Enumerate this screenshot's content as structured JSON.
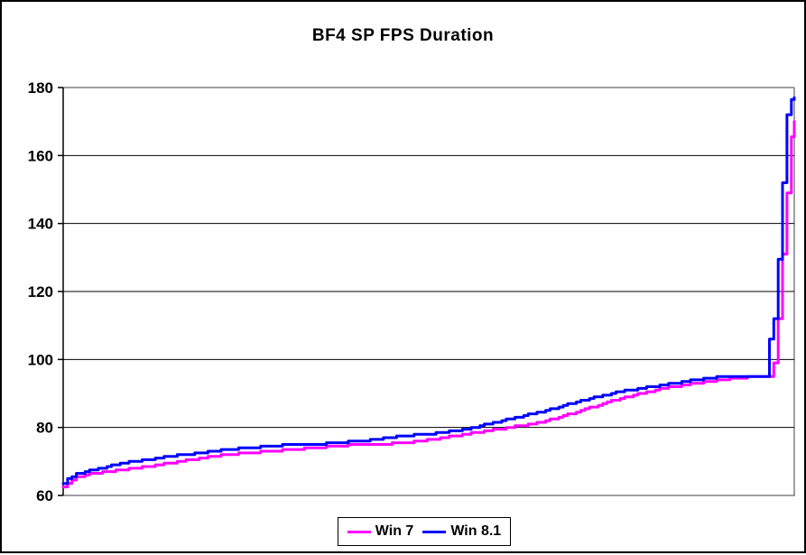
{
  "window": {
    "background": "#ffffff",
    "frame_border_color": "#000000",
    "plot_border_color": "#808080",
    "gridline_color": "#000000",
    "axis_color": "#000000"
  },
  "chart_data": {
    "type": "line",
    "title": "BF4 SP FPS Duration",
    "xlabel": "",
    "ylabel": "",
    "ylim": [
      60,
      180
    ],
    "yticks": [
      60,
      80,
      100,
      120,
      140,
      160,
      180
    ],
    "x_axis_tick_labels": "none",
    "x_range_percent": [
      0,
      100
    ],
    "grid": "horizontal gridlines at 80,100,120,140,160; gray top/right/bottom plot border",
    "legend_position": "bottom-center",
    "line_width": 3,
    "series": [
      {
        "name": "Win 7",
        "color": "#FF00FF",
        "points_percent_fps": [
          [
            0,
            62.5
          ],
          [
            0.5,
            63.5
          ],
          [
            1,
            64.5
          ],
          [
            2,
            65.5
          ],
          [
            3,
            66
          ],
          [
            4,
            66.5
          ],
          [
            6,
            67
          ],
          [
            8,
            67.5
          ],
          [
            10,
            68
          ],
          [
            13,
            69
          ],
          [
            16,
            70
          ],
          [
            19,
            71
          ],
          [
            22,
            72
          ],
          [
            25,
            72.5
          ],
          [
            28,
            73
          ],
          [
            31,
            73.5
          ],
          [
            34,
            74
          ],
          [
            37,
            74.5
          ],
          [
            40,
            75
          ],
          [
            43,
            75
          ],
          [
            46,
            75.5
          ],
          [
            49,
            76
          ],
          [
            52,
            77
          ],
          [
            55,
            78
          ],
          [
            58,
            79
          ],
          [
            61,
            80
          ],
          [
            64,
            81
          ],
          [
            67,
            82.5
          ],
          [
            70,
            84.5
          ],
          [
            73,
            86.5
          ],
          [
            76,
            88.5
          ],
          [
            79,
            90
          ],
          [
            82,
            91.5
          ],
          [
            85,
            92.5
          ],
          [
            88,
            93.5
          ],
          [
            90,
            94
          ],
          [
            92,
            94.5
          ],
          [
            94,
            95
          ],
          [
            96.8,
            95
          ],
          [
            97.3,
            100
          ],
          [
            97.8,
            112
          ],
          [
            98.3,
            128
          ],
          [
            98.8,
            143
          ],
          [
            99.3,
            158
          ],
          [
            99.7,
            168
          ],
          [
            100,
            170
          ]
        ]
      },
      {
        "name": "Win 8.1",
        "color": "#0000FF",
        "points_percent_fps": [
          [
            0,
            63.5
          ],
          [
            0.5,
            65
          ],
          [
            1,
            65.5
          ],
          [
            2,
            66.5
          ],
          [
            3,
            67
          ],
          [
            4,
            67.5
          ],
          [
            6,
            68.5
          ],
          [
            8,
            69.5
          ],
          [
            10,
            70
          ],
          [
            13,
            71
          ],
          [
            16,
            72
          ],
          [
            19,
            72.5
          ],
          [
            22,
            73.5
          ],
          [
            25,
            74
          ],
          [
            28,
            74.5
          ],
          [
            31,
            75
          ],
          [
            34,
            75
          ],
          [
            37,
            75.5
          ],
          [
            40,
            76
          ],
          [
            43,
            76.5
          ],
          [
            46,
            77.5
          ],
          [
            49,
            78
          ],
          [
            52,
            78.5
          ],
          [
            55,
            79.5
          ],
          [
            58,
            81
          ],
          [
            61,
            82.5
          ],
          [
            64,
            84
          ],
          [
            67,
            85.5
          ],
          [
            70,
            87.5
          ],
          [
            73,
            89
          ],
          [
            76,
            90.5
          ],
          [
            79,
            91.5
          ],
          [
            82,
            92.5
          ],
          [
            85,
            93.5
          ],
          [
            88,
            94.5
          ],
          [
            90,
            95
          ],
          [
            96.2,
            95
          ],
          [
            96.5,
            105
          ],
          [
            97,
            110
          ],
          [
            97.3,
            113
          ],
          [
            97.6,
            122
          ],
          [
            98,
            137
          ],
          [
            98.4,
            152
          ],
          [
            98.8,
            168
          ],
          [
            99.2,
            176
          ],
          [
            100,
            177
          ]
        ]
      }
    ]
  }
}
